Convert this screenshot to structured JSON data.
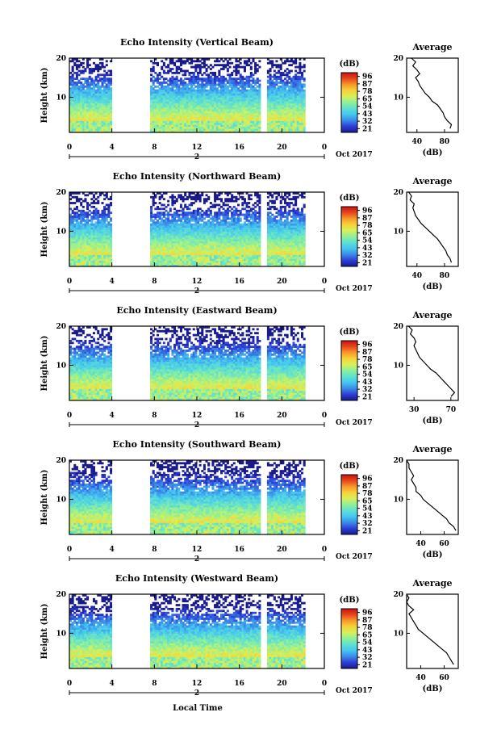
{
  "figure": {
    "bottom_xlabel": "Local Time",
    "colorbar_unit": "(dB)",
    "colorbar_ticks": [
      "96",
      "87",
      "78",
      "65",
      "54",
      "43",
      "32",
      "21"
    ],
    "colorscale": [
      "#1a1a8f",
      "#2d3fd6",
      "#3a8be8",
      "#45c6f0",
      "#5fe0d0",
      "#8ef09a",
      "#d6f05a",
      "#f7d23a",
      "#f79a2a",
      "#e8451c",
      "#c81414"
    ],
    "x_ticks": [
      "0",
      "4",
      "8",
      "12",
      "16",
      "20",
      "0"
    ],
    "date_marker": "2",
    "date_label": "Oct 2017",
    "y_ticks": [
      "20",
      "10"
    ],
    "ylabel": "Height (km)",
    "avg_title": "Average",
    "avg_xlabel": "(dB)"
  },
  "chart_data": [
    {
      "type": "heatmap",
      "title": "Echo Intensity (Vertical Beam)",
      "ylabel": "Height (km)",
      "xlabel": "",
      "xlim": [
        0,
        24
      ],
      "ylim": [
        1,
        20
      ],
      "clim": [
        21,
        96
      ],
      "data_gaps_hours": [
        [
          4,
          7.5
        ],
        [
          18,
          18.7
        ],
        [
          22.2,
          24
        ]
      ],
      "avg_profile": {
        "xticks": [
          "40",
          "80"
        ],
        "xlim": [
          25,
          100
        ],
        "heights_km": [
          2,
          3,
          4,
          5,
          6,
          7,
          8,
          9,
          10,
          11,
          12,
          13,
          14,
          15,
          16,
          17,
          18,
          19,
          20
        ],
        "values_db": [
          88,
          90,
          84,
          80,
          78,
          74,
          70,
          62,
          58,
          52,
          48,
          44,
          42,
          38,
          44,
          40,
          34,
          38,
          32
        ]
      }
    },
    {
      "type": "heatmap",
      "title": "Echo Intensity (Northward Beam)",
      "ylabel": "Height (km)",
      "xlabel": "",
      "xlim": [
        0,
        24
      ],
      "ylim": [
        1,
        20
      ],
      "clim": [
        21,
        96
      ],
      "data_gaps_hours": [
        [
          4,
          7.5
        ],
        [
          18,
          18.7
        ],
        [
          22.2,
          24
        ]
      ],
      "avg_profile": {
        "xticks": [
          "40",
          "80"
        ],
        "xlim": [
          25,
          100
        ],
        "heights_km": [
          2,
          3,
          4,
          5,
          6,
          7,
          8,
          9,
          10,
          11,
          12,
          13,
          14,
          15,
          16,
          17,
          18,
          19,
          20
        ],
        "values_db": [
          90,
          88,
          84,
          82,
          78,
          74,
          70,
          64,
          58,
          52,
          46,
          42,
          38,
          36,
          34,
          36,
          30,
          32,
          28
        ]
      }
    },
    {
      "type": "heatmap",
      "title": "Echo Intensity (Eastward Beam)",
      "ylabel": "Height (km)",
      "xlabel": "",
      "xlim": [
        0,
        24
      ],
      "ylim": [
        1,
        20
      ],
      "clim": [
        21,
        96
      ],
      "data_gaps_hours": [
        [
          4,
          7.5
        ],
        [
          18,
          18.7
        ],
        [
          22.2,
          24
        ]
      ],
      "avg_profile": {
        "xticks": [
          "30",
          "70"
        ],
        "xlim": [
          22,
          78
        ],
        "heights_km": [
          2,
          3,
          4,
          5,
          6,
          7,
          8,
          9,
          10,
          11,
          12,
          13,
          14,
          15,
          16,
          17,
          18,
          19,
          20
        ],
        "values_db": [
          70,
          74,
          70,
          66,
          62,
          58,
          54,
          48,
          44,
          40,
          36,
          34,
          32,
          30,
          32,
          30,
          26,
          28,
          24
        ]
      }
    },
    {
      "type": "heatmap",
      "title": "Echo Intensity (Southward Beam)",
      "ylabel": "Height (km)",
      "xlabel": "",
      "xlim": [
        0,
        24
      ],
      "ylim": [
        1,
        20
      ],
      "clim": [
        21,
        96
      ],
      "data_gaps_hours": [
        [
          4,
          7.5
        ],
        [
          18,
          18.7
        ],
        [
          22.2,
          24
        ]
      ],
      "avg_profile": {
        "xticks": [
          "40",
          "60"
        ],
        "xlim": [
          28,
          72
        ],
        "heights_km": [
          2,
          3,
          4,
          5,
          6,
          7,
          8,
          9,
          10,
          11,
          12,
          13,
          14,
          15,
          16,
          17,
          18,
          19,
          20
        ],
        "values_db": [
          70,
          68,
          64,
          62,
          58,
          54,
          50,
          46,
          42,
          40,
          36,
          36,
          34,
          32,
          34,
          32,
          30,
          30,
          28
        ]
      }
    },
    {
      "type": "heatmap",
      "title": "Echo Intensity (Westward Beam)",
      "ylabel": "Height (km)",
      "xlabel": "Local Time",
      "xlim": [
        0,
        24
      ],
      "ylim": [
        1,
        20
      ],
      "clim": [
        21,
        96
      ],
      "data_gaps_hours": [
        [
          4,
          7.5
        ],
        [
          18,
          18.7
        ],
        [
          22.2,
          24
        ]
      ],
      "avg_profile": {
        "xticks": [
          "40",
          "60"
        ],
        "xlim": [
          28,
          72
        ],
        "heights_km": [
          2,
          3,
          4,
          5,
          6,
          7,
          8,
          9,
          10,
          11,
          12,
          13,
          14,
          15,
          16,
          17,
          18,
          19,
          20
        ],
        "values_db": [
          68,
          66,
          64,
          62,
          58,
          54,
          50,
          46,
          42,
          38,
          36,
          34,
          32,
          30,
          34,
          30,
          28,
          30,
          28
        ]
      }
    }
  ]
}
